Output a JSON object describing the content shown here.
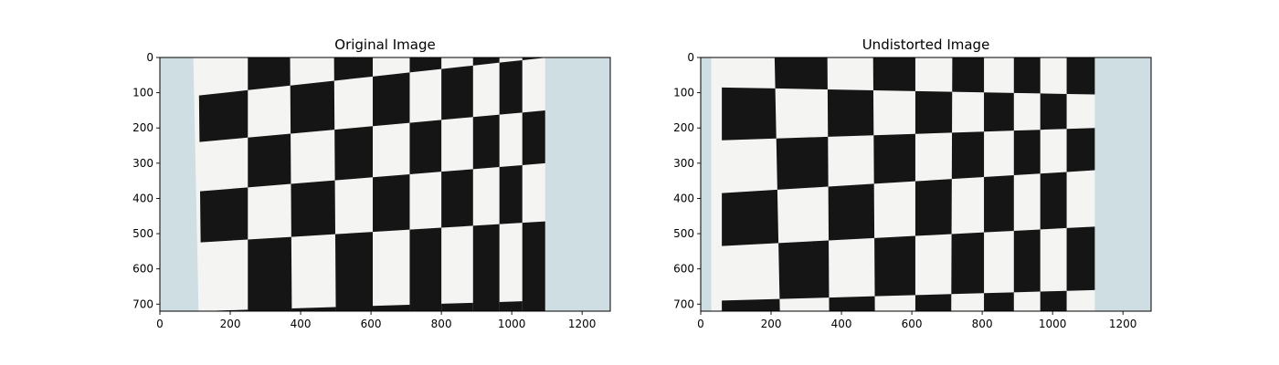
{
  "chart_data": [
    {
      "type": "image",
      "title": "Original Image",
      "xlim": [
        0,
        1280
      ],
      "ylim": [
        720,
        0
      ],
      "x_ticks": [
        0,
        200,
        400,
        600,
        800,
        1000,
        1200
      ],
      "y_ticks": [
        0,
        100,
        200,
        300,
        400,
        500,
        600,
        700
      ],
      "grid": false,
      "background_color": "#cfdee3",
      "paper_color": "#f4f4f2",
      "square_color": "#151515",
      "paper": [
        [
          95,
          0
        ],
        [
          1095,
          0
        ],
        [
          1095,
          690
        ],
        [
          110,
          720
        ]
      ],
      "h_lines": [
        [
          [
            88,
            0
          ],
          [
            1100,
            0
          ]
        ],
        [
          [
            110,
            108
          ],
          [
            1100,
            0
          ]
        ],
        [
          [
            112,
            240
          ],
          [
            1098,
            150
          ]
        ],
        [
          [
            112,
            380
          ],
          [
            1098,
            300
          ]
        ],
        [
          [
            112,
            525
          ],
          [
            1098,
            465
          ]
        ],
        [
          [
            112,
            720
          ],
          [
            1098,
            720
          ]
        ],
        [
          [
            118,
            720
          ],
          [
            1095,
            690
          ]
        ]
      ],
      "v_lines": [
        [
          [
            110,
            0
          ],
          [
            118,
            720
          ]
        ],
        [
          [
            250,
            0
          ],
          [
            250,
            720
          ]
        ],
        [
          [
            370,
            0
          ],
          [
            375,
            720
          ]
        ],
        [
          [
            495,
            0
          ],
          [
            500,
            720
          ]
        ],
        [
          [
            605,
            0
          ],
          [
            605,
            720
          ]
        ],
        [
          [
            710,
            0
          ],
          [
            710,
            720
          ]
        ],
        [
          [
            800,
            0
          ],
          [
            800,
            720
          ]
        ],
        [
          [
            890,
            0
          ],
          [
            890,
            720
          ]
        ],
        [
          [
            965,
            0
          ],
          [
            965,
            720
          ]
        ],
        [
          [
            1030,
            0
          ],
          [
            1030,
            720
          ]
        ],
        [
          [
            1095,
            0
          ],
          [
            1095,
            720
          ]
        ]
      ],
      "black_cells": [
        [
          0,
          1
        ],
        [
          0,
          3
        ],
        [
          0,
          5
        ],
        [
          0,
          7
        ],
        [
          0,
          9
        ],
        [
          1,
          0
        ],
        [
          1,
          2
        ],
        [
          1,
          4
        ],
        [
          1,
          6
        ],
        [
          1,
          8
        ],
        [
          2,
          1
        ],
        [
          2,
          3
        ],
        [
          2,
          5
        ],
        [
          2,
          7
        ],
        [
          2,
          9
        ],
        [
          3,
          0
        ],
        [
          3,
          2
        ],
        [
          3,
          4
        ],
        [
          3,
          6
        ],
        [
          3,
          8
        ],
        [
          4,
          1
        ],
        [
          4,
          3
        ],
        [
          4,
          5
        ],
        [
          4,
          7
        ],
        [
          4,
          9
        ],
        [
          5,
          0
        ],
        [
          5,
          2
        ],
        [
          5,
          4
        ],
        [
          5,
          6
        ],
        [
          5,
          8
        ]
      ]
    },
    {
      "type": "image",
      "title": "Undistorted Image",
      "xlim": [
        0,
        1280
      ],
      "ylim": [
        720,
        0
      ],
      "x_ticks": [
        0,
        200,
        400,
        600,
        800,
        1000,
        1200
      ],
      "y_ticks": [
        0,
        100,
        200,
        300,
        400,
        500,
        600,
        700
      ],
      "grid": false,
      "background_color": "#cfdee3",
      "paper_color": "#f4f4f2",
      "square_color": "#151515",
      "paper": [
        [
          30,
          0
        ],
        [
          1120,
          0
        ],
        [
          1120,
          720
        ],
        [
          30,
          720
        ]
      ],
      "h_lines": [
        [
          [
            40,
            0
          ],
          [
            1120,
            0
          ]
        ],
        [
          [
            60,
            85
          ],
          [
            1120,
            105
          ]
        ],
        [
          [
            60,
            235
          ],
          [
            1120,
            200
          ]
        ],
        [
          [
            60,
            385
          ],
          [
            1120,
            320
          ]
        ],
        [
          [
            60,
            535
          ],
          [
            1120,
            480
          ]
        ],
        [
          [
            60,
            690
          ],
          [
            1120,
            660
          ]
        ],
        [
          [
            60,
            720
          ],
          [
            1120,
            720
          ]
        ]
      ],
      "v_lines": [
        [
          [
            60,
            0
          ],
          [
            60,
            720
          ]
        ],
        [
          [
            210,
            0
          ],
          [
            225,
            720
          ]
        ],
        [
          [
            360,
            0
          ],
          [
            365,
            720
          ]
        ],
        [
          [
            490,
            0
          ],
          [
            495,
            720
          ]
        ],
        [
          [
            610,
            0
          ],
          [
            610,
            720
          ]
        ],
        [
          [
            715,
            0
          ],
          [
            712,
            720
          ]
        ],
        [
          [
            805,
            0
          ],
          [
            805,
            720
          ]
        ],
        [
          [
            890,
            0
          ],
          [
            890,
            720
          ]
        ],
        [
          [
            965,
            0
          ],
          [
            965,
            720
          ]
        ],
        [
          [
            1040,
            0
          ],
          [
            1040,
            720
          ]
        ],
        [
          [
            1120,
            0
          ],
          [
            1120,
            720
          ]
        ]
      ],
      "black_cells": [
        [
          0,
          1
        ],
        [
          0,
          3
        ],
        [
          0,
          5
        ],
        [
          0,
          7
        ],
        [
          0,
          9
        ],
        [
          1,
          0
        ],
        [
          1,
          2
        ],
        [
          1,
          4
        ],
        [
          1,
          6
        ],
        [
          1,
          8
        ],
        [
          2,
          1
        ],
        [
          2,
          3
        ],
        [
          2,
          5
        ],
        [
          2,
          7
        ],
        [
          2,
          9
        ],
        [
          3,
          0
        ],
        [
          3,
          2
        ],
        [
          3,
          4
        ],
        [
          3,
          6
        ],
        [
          3,
          8
        ],
        [
          4,
          1
        ],
        [
          4,
          3
        ],
        [
          4,
          5
        ],
        [
          4,
          7
        ],
        [
          4,
          9
        ],
        [
          5,
          0
        ],
        [
          5,
          2
        ],
        [
          5,
          4
        ],
        [
          5,
          6
        ],
        [
          5,
          8
        ]
      ]
    }
  ]
}
